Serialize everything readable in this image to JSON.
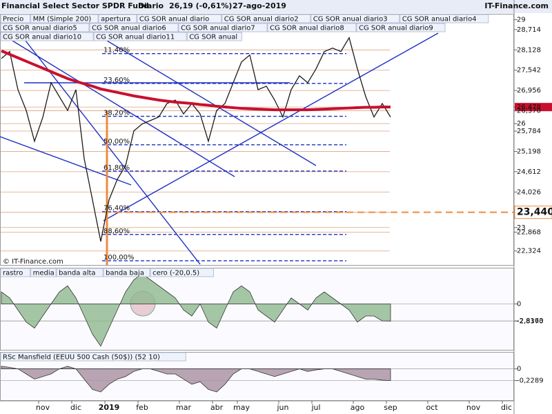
{
  "chart_data": [
    {
      "type": "line",
      "title": "Financial Select Sector SPDR Fund",
      "period": "Diario",
      "last": "26,19 (-0,61%)",
      "date": "27-ago-2019",
      "source": "IT-Finance.com",
      "watermark": "© IT-Finance.com",
      "categories": [
        null,
        null,
        null,
        null,
        null,
        "nov",
        null,
        null,
        null,
        "dic",
        null,
        null,
        null,
        "2019",
        null,
        null,
        null,
        "feb",
        null,
        null,
        null,
        null,
        "mar",
        null,
        null,
        null,
        "abr",
        null,
        null,
        "may",
        null,
        null,
        null,
        null,
        "jun",
        null,
        null,
        null,
        "jul",
        null,
        null,
        null,
        null,
        "ago",
        null,
        null,
        null,
        "sep",
        null,
        null,
        null,
        null,
        "oct",
        null,
        null,
        null,
        null,
        "nov",
        null,
        null,
        null,
        "dic"
      ],
      "series": [
        {
          "name": "Precio",
          "color": "#1a1a1a",
          "values": [
            27.88,
            28.08,
            26.98,
            26.38,
            25.49,
            26.18,
            27.18,
            26.78,
            26.38,
            26.98,
            24.99,
            23.8,
            22.6,
            23.8,
            24.39,
            24.79,
            25.79,
            25.99,
            26.09,
            26.19,
            26.58,
            26.68,
            26.28,
            26.58,
            26.28,
            25.49,
            26.38,
            26.58,
            27.18,
            27.78,
            27.98,
            26.98,
            27.08,
            26.68,
            26.19,
            26.98,
            27.38,
            27.18,
            27.58,
            28.08,
            28.18,
            28.08,
            28.48,
            27.58,
            26.78,
            26.19,
            26.58,
            26.19,
            null,
            null,
            null,
            null,
            null,
            null,
            null,
            null,
            null,
            null,
            null,
            null,
            null,
            null
          ]
        },
        {
          "name": "MM (Simple 200)",
          "color": "#c8102e",
          "values": [
            28.1,
            28.0,
            27.9,
            27.8,
            27.7,
            27.6,
            27.5,
            27.4,
            27.3,
            27.22,
            27.15,
            27.08,
            27.0,
            26.95,
            26.9,
            26.85,
            26.8,
            26.76,
            26.72,
            26.68,
            26.65,
            26.62,
            26.6,
            26.58,
            26.55,
            26.53,
            26.5,
            26.48,
            26.46,
            26.44,
            26.43,
            26.42,
            26.41,
            26.4,
            26.4,
            26.4,
            26.4,
            26.4,
            26.41,
            26.42,
            26.43,
            26.44,
            26.45,
            26.46,
            26.47,
            26.47,
            26.48,
            26.478,
            null,
            null,
            null,
            null,
            null,
            null,
            null,
            null,
            null,
            null,
            null,
            null,
            null,
            null
          ]
        }
      ],
      "other_legend": [
        "apertura",
        "CG SOR anual diario",
        "CG SOR anual diario2",
        "CG SOR anual diario3",
        "CG SOR anual diario4",
        "CG SOR anual diario5",
        "CG SOR anual diario6",
        "CG SOR anual diario7",
        "CG SOR anual diario8",
        "CG SOR anual diario9",
        "CG SOR anual diario10",
        "CG SOR anual diario11",
        "CG SOR anual"
      ],
      "ylim": [
        21.9,
        29.17
      ],
      "yticks": [
        29,
        {
          "value": 28.714,
          "label": "28,714"
        },
        {
          "value": 28.128,
          "label": "28,128"
        },
        {
          "value": 27.542,
          "label": "27,542"
        },
        {
          "value": 26.956,
          "label": "26,956"
        },
        {
          "value": 26.478,
          "label": "26,478"
        },
        {
          "value": 26.37,
          "label": "26,370"
        },
        26,
        {
          "value": 25.784,
          "label": "25,784"
        },
        {
          "value": 25.198,
          "label": "25,198"
        },
        {
          "value": 24.612,
          "label": "24,612"
        },
        {
          "value": 24.026,
          "label": "24,026"
        },
        {
          "value": 23.44,
          "label": "23,440"
        },
        23,
        {
          "value": 22.868,
          "label": "22,868"
        },
        {
          "value": 22.324,
          "label": "22,324"
        }
      ],
      "fibonacci": [
        {
          "value": 28.02,
          "label": "11,40%",
          "color": "#1d2fc4"
        },
        {
          "value": 27.16,
          "label": "23,60%",
          "color": "#1d2fc4"
        },
        {
          "value": 26.21,
          "label": "38,20%",
          "color": "#d05050"
        },
        {
          "value": 25.39,
          "label": "50,00%",
          "color": "#1d2fc4"
        },
        {
          "value": 24.63,
          "label": "61,80%",
          "color": "#d05050"
        },
        {
          "value": 23.46,
          "label": "76,40%",
          "color": "#1d2fc4"
        },
        {
          "value": 22.8,
          "label": "88,60%",
          "color": "#1d2fc4"
        },
        {
          "value": 22.04,
          "label": "100,00%",
          "color": "#1d2fc4"
        }
      ],
      "hlines": [
        {
          "value": 23.44,
          "color": "#f08a3c"
        }
      ],
      "grid": true
    },
    {
      "type": "area",
      "legend": [
        "rastro",
        "media",
        "banda alta",
        "banda baja",
        "cero (-20,0.5)"
      ],
      "series": [
        {
          "name": "rastro",
          "color": "#8fb98f",
          "values": [
            2,
            1,
            -1,
            -3,
            -4,
            -2,
            0,
            2,
            3,
            1,
            -2,
            -5,
            -7,
            -4,
            -1,
            2,
            4,
            5,
            4,
            3,
            2,
            1,
            -1,
            -2,
            0,
            -3,
            -4,
            -1,
            2,
            3,
            2,
            -1,
            -2,
            -3,
            -1,
            1,
            0,
            -1,
            1,
            2,
            1,
            0,
            -1,
            -3,
            -2,
            -2,
            -2.8,
            -2.837,
            null,
            null,
            null,
            null,
            null,
            null,
            null,
            null,
            null,
            null,
            null,
            null,
            null,
            null
          ]
        }
      ],
      "ylim": [
        -7.6,
        6.0
      ],
      "yticks": [
        0,
        {
          "value": -2.8163,
          "label": "-2,8163"
        },
        {
          "value": -2.837,
          "label": "-2,8370"
        }
      ],
      "grid": true
    },
    {
      "type": "area",
      "legend": [
        "RSc Mansfield (EEUU 500 Cash (50$)) (52 10)"
      ],
      "series": [
        {
          "name": "RSc Mansfield (EEUU 500 Cash (50$)) (52 10)",
          "color": "#a88fa0",
          "values": [
            0.05,
            0.03,
            0,
            -0.1,
            -0.2,
            -0.15,
            -0.1,
            0,
            0.05,
            0,
            -0.2,
            -0.4,
            -0.45,
            -0.3,
            -0.2,
            -0.15,
            -0.05,
            0,
            0,
            -0.05,
            -0.1,
            -0.1,
            -0.2,
            -0.3,
            -0.25,
            -0.4,
            -0.45,
            -0.3,
            -0.1,
            0,
            0,
            -0.05,
            -0.1,
            -0.15,
            -0.1,
            -0.05,
            0,
            -0.05,
            -0.02,
            0,
            0,
            -0.05,
            -0.1,
            -0.15,
            -0.2,
            -0.2,
            -0.22,
            -0.2289,
            null,
            null,
            null,
            null,
            null,
            null,
            null,
            null,
            null,
            null,
            null,
            null,
            null,
            null
          ]
        }
      ],
      "ylim": [
        -0.61,
        0.33
      ],
      "yticks": [
        0,
        {
          "value": -0.2289,
          "label": "-0,2289"
        }
      ],
      "grid": true
    }
  ]
}
